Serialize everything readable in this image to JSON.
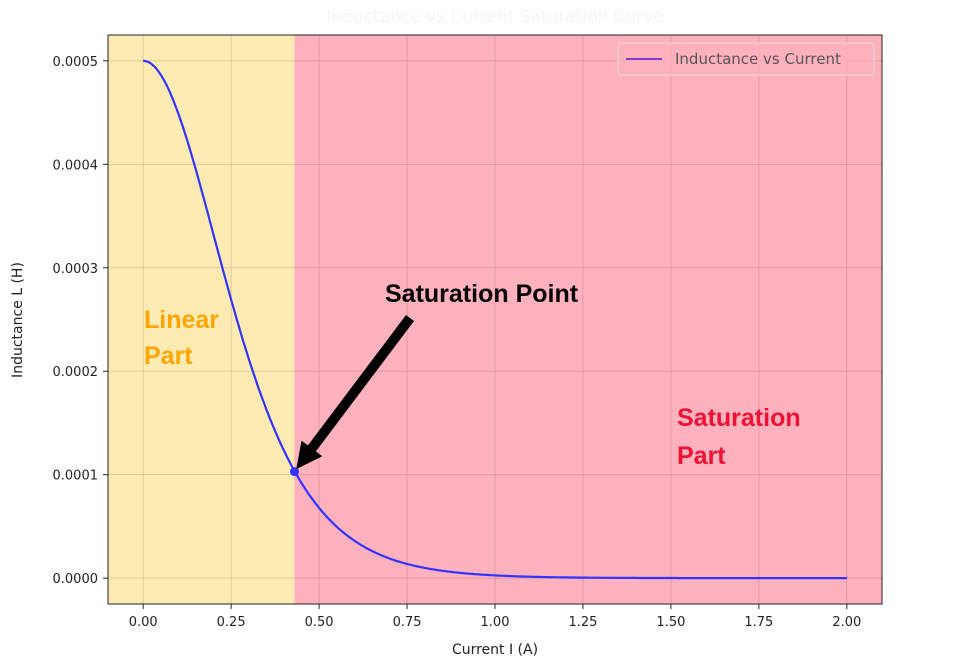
{
  "chart_data": {
    "type": "line",
    "title": "Inductance vs Current Saturation Curve",
    "xlabel": "Current I (A)",
    "ylabel": "Inductance L (H)",
    "xlim": [
      -0.1,
      2.1
    ],
    "ylim": [
      -2.5e-05,
      0.000525
    ],
    "grid": true,
    "xticks": [
      0.0,
      0.25,
      0.5,
      0.75,
      1.0,
      1.25,
      1.5,
      1.75,
      2.0
    ],
    "xtick_labels": [
      "0.00",
      "0.25",
      "0.50",
      "0.75",
      "1.00",
      "1.25",
      "1.50",
      "1.75",
      "2.00"
    ],
    "yticks": [
      0.0,
      0.0001,
      0.0002,
      0.0003,
      0.0004,
      0.0005
    ],
    "ytick_labels": [
      "0.0000",
      "0.0001",
      "0.0002",
      "0.0003",
      "0.0004",
      "0.0005"
    ],
    "legend": {
      "placement": "top-right",
      "entries": [
        "Inductance vs Current"
      ]
    },
    "series": [
      {
        "name": "Inductance vs Current",
        "color": "#3333ff",
        "x": [
          0,
          0.05,
          0.1,
          0.15,
          0.2,
          0.25,
          0.3,
          0.35,
          0.4,
          0.43,
          0.5,
          0.6,
          0.7,
          0.8,
          0.9,
          1.0,
          1.2,
          1.4,
          1.6,
          1.8,
          2.0
        ],
        "y": [
          0.0005,
          0.000486,
          0.000448,
          0.000393,
          0.00033,
          0.000268,
          0.00021,
          0.000161,
          0.000121,
          0.000103,
          6.63e-05,
          3.53e-05,
          1.86e-05,
          9.8e-06,
          5.1e-06,
          2.7e-06,
          7.3e-07,
          2e-07,
          5e-08,
          1e-08,
          0.0
        ]
      }
    ],
    "regions": [
      {
        "label": "Linear Part",
        "x": [
          0.0,
          0.43
        ],
        "color": "#fdebb3",
        "text_color": "#ffa500",
        "text_pos": [
          0.0,
          0.00025
        ]
      },
      {
        "label": "Saturation Part",
        "x": [
          0.43,
          2.1
        ],
        "color": "#ffb1be",
        "text_color": "#ee1133",
        "text_pos": [
          1.52,
          0.00015
        ]
      }
    ],
    "annotation": {
      "text": "Saturation Point",
      "point": [
        0.43,
        0.000103
      ],
      "text_pos": [
        0.7,
        0.00028
      ]
    }
  }
}
